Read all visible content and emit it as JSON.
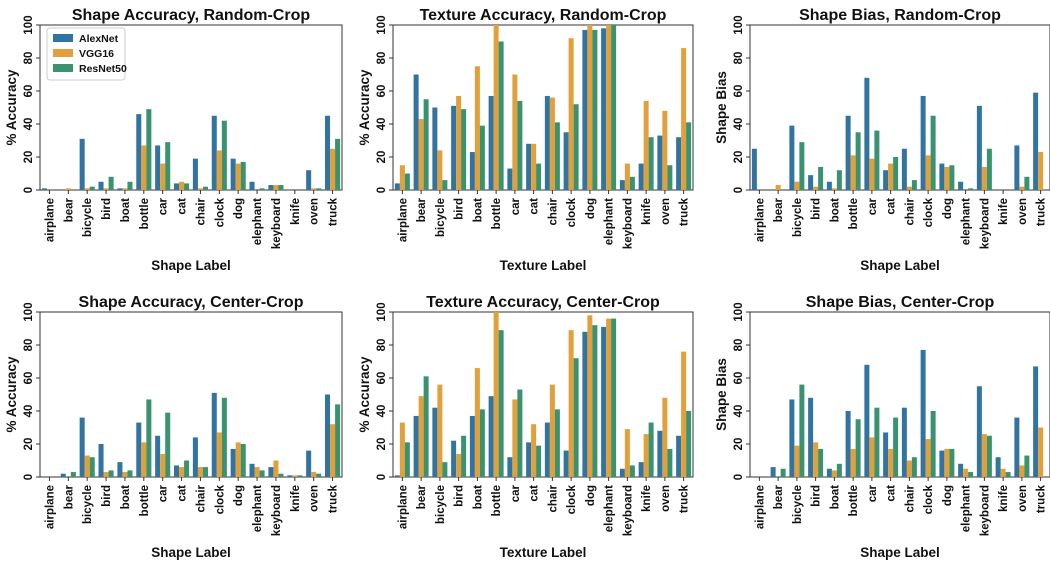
{
  "colors": {
    "AlexNet": "#3274a1",
    "VGG16": "#e1a03a",
    "ResNet50": "#3a9270"
  },
  "chart_data": [
    {
      "type": "bar",
      "title": "Shape Accuracy, Random-Crop",
      "xlabel": "Shape Label",
      "ylabel": "% Accuracy",
      "ylim": [
        0,
        100
      ],
      "yticks": [
        0,
        20,
        40,
        60,
        80,
        100
      ],
      "grid": false,
      "legend": {
        "position": "top-left",
        "entries": [
          "AlexNet",
          "VGG16",
          "ResNet50"
        ]
      },
      "categories": [
        "airplane",
        "bear",
        "bicycle",
        "bird",
        "boat",
        "bottle",
        "car",
        "cat",
        "chair",
        "clock",
        "dog",
        "elephant",
        "keyboard",
        "knife",
        "oven",
        "truck"
      ],
      "series": [
        {
          "name": "AlexNet",
          "values": [
            1,
            0,
            31,
            5,
            1,
            46,
            27,
            4,
            19,
            45,
            19,
            5,
            3,
            0,
            12,
            45
          ]
        },
        {
          "name": "VGG16",
          "values": [
            0,
            1,
            1,
            1,
            1,
            27,
            16,
            5,
            1,
            24,
            16,
            0,
            3,
            0,
            1,
            25
          ]
        },
        {
          "name": "ResNet50",
          "values": [
            0,
            0,
            2,
            8,
            5,
            49,
            29,
            4,
            2,
            42,
            17,
            1,
            3,
            0,
            1,
            31
          ]
        }
      ]
    },
    {
      "type": "bar",
      "title": "Texture Accuracy, Random-Crop",
      "xlabel": "Texture Label",
      "ylabel": "% Accuracy",
      "ylim": [
        0,
        100
      ],
      "yticks": [
        0,
        20,
        40,
        60,
        80,
        100
      ],
      "grid": false,
      "categories": [
        "airplane",
        "bear",
        "bicycle",
        "bird",
        "boat",
        "bottle",
        "car",
        "cat",
        "chair",
        "clock",
        "dog",
        "elephant",
        "keyboard",
        "knife",
        "oven",
        "truck"
      ],
      "series": [
        {
          "name": "AlexNet",
          "values": [
            4,
            70,
            50,
            51,
            23,
            57,
            13,
            28,
            57,
            35,
            97,
            98,
            6,
            16,
            33,
            32
          ]
        },
        {
          "name": "VGG16",
          "values": [
            15,
            43,
            24,
            57,
            75,
            100,
            70,
            28,
            56,
            92,
            100,
            100,
            16,
            54,
            48,
            86
          ]
        },
        {
          "name": "ResNet50",
          "values": [
            10,
            55,
            6,
            49,
            39,
            90,
            54,
            16,
            41,
            52,
            97,
            100,
            8,
            32,
            15,
            41
          ]
        }
      ]
    },
    {
      "type": "bar",
      "title": "Shape Bias, Random-Crop",
      "xlabel": "Shape Label",
      "ylabel": "Shape Bias",
      "ylim": [
        0,
        100
      ],
      "yticks": [
        0,
        20,
        40,
        60,
        80,
        100
      ],
      "grid": false,
      "categories": [
        "airplane",
        "bear",
        "bicycle",
        "bird",
        "boat",
        "bottle",
        "car",
        "cat",
        "chair",
        "clock",
        "dog",
        "elephant",
        "keyboard",
        "knife",
        "oven",
        "truck"
      ],
      "series": [
        {
          "name": "AlexNet",
          "values": [
            25,
            0,
            39,
            9,
            5,
            45,
            68,
            12,
            25,
            57,
            16,
            5,
            51,
            0,
            27,
            59
          ]
        },
        {
          "name": "VGG16",
          "values": [
            0,
            3,
            5,
            2,
            1,
            21,
            19,
            16,
            2,
            21,
            14,
            0,
            14,
            0,
            2,
            23
          ]
        },
        {
          "name": "ResNet50",
          "values": [
            0,
            0,
            29,
            14,
            12,
            35,
            36,
            20,
            6,
            45,
            15,
            1,
            25,
            0,
            8,
            0
          ]
        }
      ]
    },
    {
      "type": "bar",
      "title": "Shape Accuracy, Center-Crop",
      "xlabel": "Shape Label",
      "ylabel": "% Accuracy",
      "ylim": [
        0,
        100
      ],
      "yticks": [
        0,
        20,
        40,
        60,
        80,
        100
      ],
      "grid": false,
      "categories": [
        "airplane",
        "bear",
        "bicycle",
        "bird",
        "boat",
        "bottle",
        "car",
        "cat",
        "chair",
        "clock",
        "dog",
        "elephant",
        "keyboard",
        "knife",
        "oven",
        "truck"
      ],
      "series": [
        {
          "name": "AlexNet",
          "values": [
            0,
            2,
            36,
            20,
            9,
            33,
            25,
            7,
            24,
            51,
            17,
            8,
            6,
            1,
            16,
            50
          ]
        },
        {
          "name": "VGG16",
          "values": [
            0,
            0,
            13,
            3,
            3,
            21,
            14,
            6,
            6,
            27,
            21,
            6,
            10,
            1,
            3,
            32
          ]
        },
        {
          "name": "ResNet50",
          "values": [
            0,
            3,
            12,
            4,
            4,
            47,
            39,
            10,
            6,
            48,
            20,
            4,
            2,
            1,
            2,
            44
          ]
        }
      ]
    },
    {
      "type": "bar",
      "title": "Texture Accuracy, Center-Crop",
      "xlabel": "Texture Label",
      "ylabel": "% Accuracy",
      "ylim": [
        0,
        100
      ],
      "yticks": [
        0,
        20,
        40,
        60,
        80,
        100
      ],
      "grid": false,
      "categories": [
        "airplane",
        "bear",
        "bicycle",
        "bird",
        "boat",
        "bottle",
        "car",
        "cat",
        "chair",
        "clock",
        "dog",
        "elephant",
        "keyboard",
        "knife",
        "oven",
        "truck"
      ],
      "series": [
        {
          "name": "AlexNet",
          "values": [
            1,
            37,
            42,
            22,
            37,
            49,
            12,
            21,
            33,
            16,
            88,
            91,
            5,
            9,
            28,
            25
          ]
        },
        {
          "name": "VGG16",
          "values": [
            33,
            49,
            56,
            14,
            66,
            100,
            47,
            32,
            56,
            89,
            98,
            96,
            29,
            26,
            48,
            76
          ]
        },
        {
          "name": "ResNet50",
          "values": [
            21,
            61,
            9,
            25,
            41,
            89,
            53,
            19,
            41,
            72,
            92,
            96,
            7,
            33,
            17,
            40
          ]
        }
      ]
    },
    {
      "type": "bar",
      "title": "Shape Bias, Center-Crop",
      "xlabel": "Shape Label",
      "ylabel": "Shape Bias",
      "ylim": [
        0,
        100
      ],
      "yticks": [
        0,
        20,
        40,
        60,
        80,
        100
      ],
      "grid": false,
      "categories": [
        "airplane",
        "bear",
        "bicycle",
        "bird",
        "boat",
        "bottle",
        "car",
        "cat",
        "chair",
        "clock",
        "dog",
        "elephant",
        "keyboard",
        "knife",
        "oven",
        "truck"
      ],
      "series": [
        {
          "name": "AlexNet",
          "values": [
            0,
            6,
            47,
            48,
            5,
            40,
            68,
            27,
            42,
            77,
            16,
            8,
            55,
            12,
            36,
            67
          ]
        },
        {
          "name": "VGG16",
          "values": [
            0,
            0,
            19,
            21,
            4,
            17,
            24,
            17,
            10,
            23,
            17,
            5,
            26,
            5,
            7,
            30
          ]
        },
        {
          "name": "ResNet50",
          "values": [
            0,
            5,
            56,
            17,
            8,
            35,
            42,
            36,
            12,
            40,
            17,
            3,
            25,
            3,
            13,
            0
          ]
        }
      ]
    }
  ]
}
